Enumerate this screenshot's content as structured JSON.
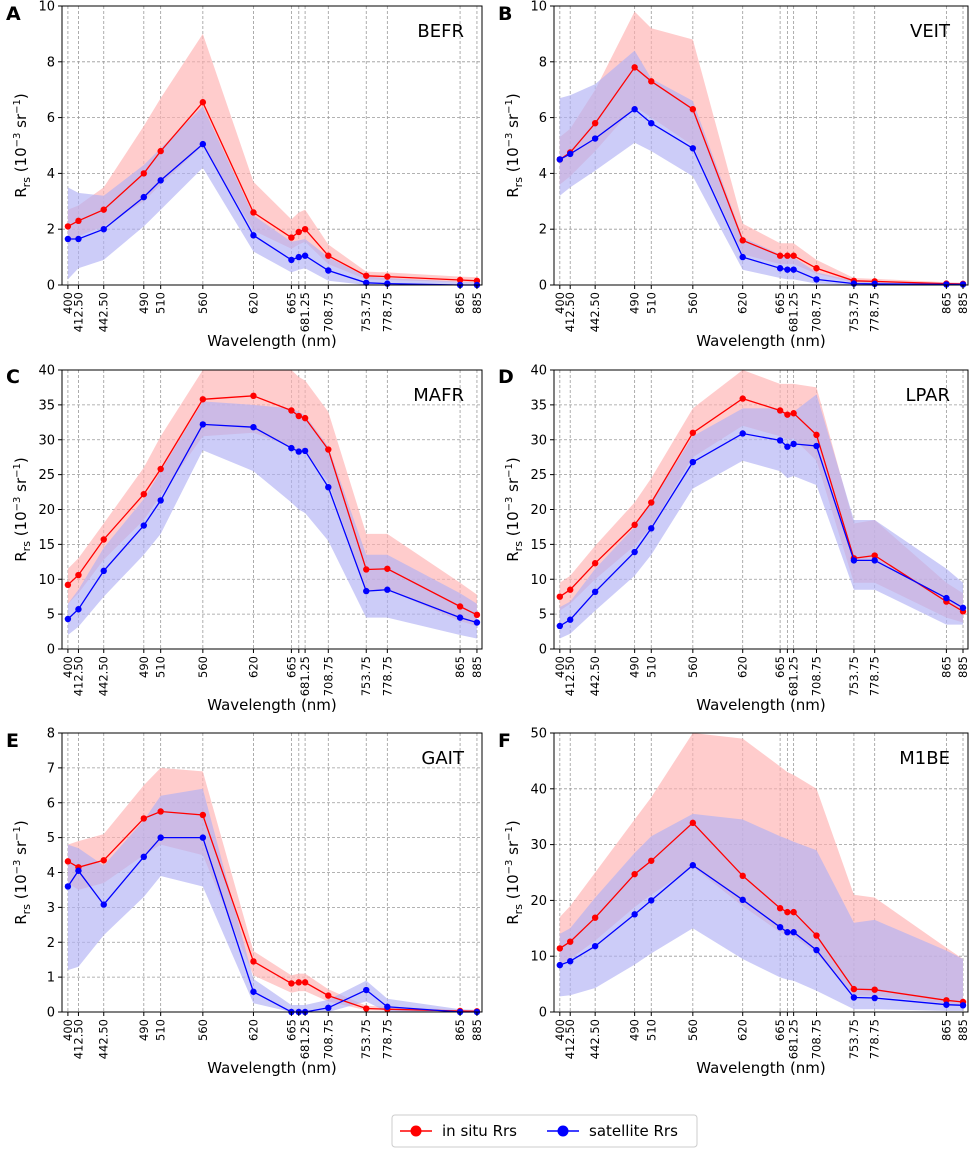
{
  "figure": {
    "xlabel": "Wavelength (nm)",
    "ylabel_main": "R",
    "ylabel_sub": "rs",
    "ylabel_unit": "(10",
    "ylabel_exp": "−3",
    "ylabel_sr": "sr",
    "ylabel_sr_exp": "−1",
    "ylabel_close": ")",
    "x_ticks": [
      400,
      412.5,
      442.5,
      490,
      510,
      560,
      620,
      665,
      673.75,
      681.25,
      708.75,
      753.75,
      778.75,
      865,
      885
    ],
    "x_tick_labels": [
      "400",
      "412.50",
      "442.50",
      "490",
      "510",
      "560",
      "620",
      "665",
      "",
      "681.25",
      "708.75",
      "753.75",
      "778.75",
      "865",
      "885"
    ],
    "xlim": [
      393,
      891
    ],
    "colors": {
      "in_situ": "#ff0000",
      "satellite": "#0000ff",
      "in_situ_band": "#ffb0b0",
      "satellite_band": "#b0b0f5",
      "grid": "#999999"
    }
  },
  "legend": {
    "in_situ_label": "in situ Rrs",
    "satellite_label": "satellite Rrs"
  },
  "chart_data": [
    {
      "type": "line",
      "panel": "A",
      "title": "BEFR",
      "ylim": [
        0,
        10
      ],
      "yticks": [
        0,
        2,
        4,
        6,
        8,
        10
      ],
      "ytick_labels": [
        "0",
        "2",
        "4",
        "6",
        "8",
        "10"
      ],
      "series": [
        {
          "name": "in situ Rrs",
          "values": [
            2.1,
            2.3,
            2.7,
            4.0,
            4.8,
            6.55,
            2.6,
            1.7,
            1.9,
            2.0,
            1.05,
            0.33,
            0.3,
            0.18,
            0.15
          ],
          "lower": [
            1.5,
            1.75,
            2.1,
            3.0,
            3.6,
            5.0,
            1.95,
            1.3,
            1.45,
            1.55,
            0.75,
            0.2,
            0.18,
            0.1,
            0.08
          ],
          "upper": [
            2.7,
            2.85,
            3.5,
            5.7,
            6.7,
            9.0,
            3.7,
            2.35,
            2.6,
            2.7,
            1.45,
            0.48,
            0.45,
            0.3,
            0.28
          ]
        },
        {
          "name": "satellite Rrs",
          "values": [
            1.65,
            1.65,
            2.0,
            3.15,
            3.75,
            5.05,
            1.78,
            0.9,
            1.0,
            1.05,
            0.52,
            0.08,
            0.05,
            0.0,
            0.0
          ],
          "lower": [
            0.2,
            0.6,
            0.9,
            2.1,
            2.7,
            4.2,
            1.2,
            0.45,
            0.55,
            0.6,
            0.15,
            0.0,
            0.0,
            0.0,
            0.0
          ],
          "upper": [
            3.5,
            3.3,
            3.2,
            4.3,
            4.9,
            6.4,
            2.5,
            1.55,
            1.6,
            1.65,
            1.0,
            0.3,
            0.25,
            0.12,
            0.1
          ]
        }
      ]
    },
    {
      "type": "line",
      "panel": "B",
      "title": "VEIT",
      "ylim": [
        0,
        10
      ],
      "yticks": [
        0,
        2,
        4,
        6,
        8,
        10
      ],
      "ytick_labels": [
        "0",
        "2",
        "4",
        "6",
        "8",
        "10"
      ],
      "series": [
        {
          "name": "in situ Rrs",
          "values": [
            4.5,
            4.75,
            5.8,
            7.8,
            7.3,
            6.3,
            1.6,
            1.05,
            1.05,
            1.05,
            0.6,
            0.15,
            0.13,
            0.05,
            0.04
          ],
          "lower": [
            3.6,
            3.9,
            4.8,
            6.4,
            6.0,
            5.0,
            1.1,
            0.75,
            0.75,
            0.75,
            0.4,
            0.08,
            0.07,
            0.02,
            0.02
          ],
          "upper": [
            5.3,
            5.6,
            7.0,
            9.8,
            9.2,
            8.8,
            2.2,
            1.5,
            1.5,
            1.5,
            0.9,
            0.25,
            0.22,
            0.1,
            0.08
          ]
        },
        {
          "name": "satellite Rrs",
          "values": [
            4.5,
            4.7,
            5.25,
            6.3,
            5.8,
            4.9,
            1.0,
            0.6,
            0.55,
            0.55,
            0.2,
            0.05,
            0.04,
            0.02,
            0.02
          ],
          "lower": [
            3.2,
            3.5,
            4.1,
            5.1,
            4.8,
            3.9,
            0.55,
            0.25,
            0.2,
            0.2,
            0.05,
            0.0,
            0.0,
            0.0,
            0.0
          ],
          "upper": [
            6.7,
            6.8,
            7.2,
            8.4,
            7.4,
            6.6,
            1.7,
            1.1,
            1.0,
            1.0,
            0.45,
            0.15,
            0.12,
            0.07,
            0.06
          ]
        }
      ]
    },
    {
      "type": "line",
      "panel": "C",
      "title": "MAFR",
      "ylim": [
        0,
        40
      ],
      "yticks": [
        0,
        5,
        10,
        15,
        20,
        25,
        30,
        35,
        40
      ],
      "ytick_labels": [
        "0",
        "5",
        "10",
        "15",
        "20",
        "25",
        "30",
        "35",
        "40"
      ],
      "series": [
        {
          "name": "in situ Rrs",
          "values": [
            9.2,
            10.6,
            15.7,
            22.2,
            25.8,
            35.8,
            36.3,
            34.2,
            33.4,
            33.1,
            28.6,
            11.4,
            11.5,
            6.1,
            4.9
          ],
          "lower": [
            6.5,
            8.0,
            12.8,
            18.5,
            22.0,
            30.5,
            31.0,
            29.0,
            28.5,
            28.3,
            24.0,
            8.3,
            8.5,
            4.0,
            3.3
          ],
          "upper": [
            11.5,
            13.0,
            18.0,
            26.0,
            30.5,
            40.0,
            40.0,
            40.0,
            39.0,
            38.5,
            34.0,
            16.5,
            16.5,
            9.5,
            7.8
          ]
        },
        {
          "name": "satellite Rrs",
          "values": [
            4.3,
            5.7,
            11.2,
            17.7,
            21.3,
            32.2,
            31.8,
            28.8,
            28.3,
            28.4,
            23.2,
            8.3,
            8.5,
            4.5,
            3.8
          ],
          "lower": [
            2.0,
            3.2,
            7.5,
            13.5,
            16.5,
            28.5,
            25.5,
            21.0,
            20.0,
            19.5,
            15.5,
            4.5,
            4.5,
            2.0,
            1.5
          ],
          "upper": [
            6.5,
            8.5,
            14.5,
            21.5,
            25.5,
            35.5,
            35.0,
            34.5,
            34.0,
            33.5,
            29.0,
            13.5,
            13.5,
            8.0,
            6.5
          ]
        }
      ]
    },
    {
      "type": "line",
      "panel": "D",
      "title": "LPAR",
      "ylim": [
        0,
        40
      ],
      "yticks": [
        0,
        5,
        10,
        15,
        20,
        25,
        30,
        35,
        40
      ],
      "ytick_labels": [
        "0",
        "5",
        "10",
        "15",
        "20",
        "25",
        "30",
        "35",
        "40"
      ],
      "series": [
        {
          "name": "in situ Rrs",
          "values": [
            7.5,
            8.5,
            12.3,
            17.8,
            21.0,
            31.0,
            35.9,
            34.2,
            33.6,
            33.8,
            30.7,
            13.0,
            13.4,
            6.8,
            5.4
          ],
          "lower": [
            5.5,
            6.5,
            10.0,
            14.8,
            17.5,
            27.5,
            32.0,
            30.5,
            30.0,
            30.2,
            27.0,
            9.5,
            9.5,
            4.5,
            3.8
          ],
          "upper": [
            9.5,
            10.5,
            14.8,
            21.0,
            24.5,
            34.5,
            40.0,
            38.0,
            38.0,
            38.0,
            37.5,
            18.0,
            18.5,
            9.5,
            8.0
          ]
        },
        {
          "name": "satellite Rrs",
          "values": [
            3.3,
            4.2,
            8.2,
            13.9,
            17.3,
            26.8,
            30.9,
            29.9,
            29.0,
            29.4,
            29.1,
            12.7,
            12.7,
            7.3,
            5.9
          ],
          "lower": [
            1.5,
            2.2,
            5.5,
            10.5,
            13.5,
            23.0,
            27.0,
            25.5,
            24.5,
            24.8,
            23.5,
            8.5,
            8.5,
            3.5,
            3.5
          ],
          "upper": [
            6.0,
            6.8,
            11.5,
            17.5,
            21.0,
            30.5,
            34.5,
            34.5,
            33.5,
            34.0,
            36.5,
            18.5,
            18.5,
            11.5,
            9.5
          ]
        }
      ]
    },
    {
      "type": "line",
      "panel": "E",
      "title": "GAIT",
      "ylim": [
        0,
        8
      ],
      "yticks": [
        0,
        1,
        2,
        3,
        4,
        5,
        6,
        7,
        8
      ],
      "ytick_labels": [
        "0",
        "1",
        "2",
        "3",
        "4",
        "5",
        "6",
        "7",
        "8"
      ],
      "series": [
        {
          "name": "in situ Rrs",
          "values": [
            4.32,
            4.15,
            4.35,
            5.55,
            5.75,
            5.65,
            1.45,
            0.82,
            0.85,
            0.85,
            0.47,
            0.1,
            0.08,
            0.03,
            0.02
          ],
          "lower": [
            3.7,
            3.5,
            3.7,
            4.5,
            4.8,
            4.5,
            1.05,
            0.55,
            0.6,
            0.6,
            0.3,
            0.05,
            0.04,
            0.01,
            0.01
          ],
          "upper": [
            4.8,
            4.9,
            5.1,
            6.5,
            7.0,
            6.9,
            1.75,
            1.05,
            1.1,
            1.1,
            0.65,
            0.18,
            0.15,
            0.06,
            0.05
          ]
        },
        {
          "name": "satellite Rrs",
          "values": [
            3.6,
            4.05,
            3.08,
            4.45,
            5.0,
            5.0,
            0.58,
            0.0,
            0.0,
            0.0,
            0.12,
            0.63,
            0.15,
            0.0,
            0.0
          ],
          "lower": [
            1.2,
            1.3,
            2.2,
            3.3,
            3.9,
            3.6,
            0.25,
            0.0,
            0.0,
            0.0,
            0.0,
            0.3,
            0.0,
            0.0,
            0.0
          ],
          "upper": [
            4.8,
            4.7,
            4.2,
            5.5,
            6.2,
            6.4,
            0.95,
            0.2,
            0.2,
            0.2,
            0.35,
            0.9,
            0.38,
            0.08,
            0.06
          ]
        }
      ]
    },
    {
      "type": "line",
      "panel": "F",
      "title": "M1BE",
      "ylim": [
        0,
        50
      ],
      "yticks": [
        0,
        10,
        20,
        30,
        40,
        50
      ],
      "ytick_labels": [
        "0",
        "10",
        "20",
        "30",
        "40",
        "50"
      ],
      "series": [
        {
          "name": "in situ Rrs",
          "values": [
            11.4,
            12.6,
            16.9,
            24.7,
            27.1,
            33.9,
            24.4,
            18.6,
            17.9,
            17.9,
            13.7,
            4.1,
            4.0,
            2.1,
            1.8
          ],
          "lower": [
            8.5,
            9.5,
            12.8,
            18.8,
            21.0,
            26.0,
            19.0,
            14.3,
            13.6,
            13.6,
            10.5,
            3.0,
            2.9,
            1.5,
            1.2
          ],
          "upper": [
            17.0,
            19.0,
            25.0,
            34.5,
            38.5,
            50.0,
            49.0,
            44.0,
            43.0,
            42.5,
            40.0,
            21.0,
            20.5,
            11.5,
            9.5
          ]
        },
        {
          "name": "satellite Rrs",
          "values": [
            8.4,
            9.1,
            11.8,
            17.5,
            20.0,
            26.3,
            20.1,
            15.2,
            14.3,
            14.3,
            11.1,
            2.6,
            2.5,
            1.3,
            1.2
          ],
          "lower": [
            2.8,
            3.0,
            4.3,
            8.5,
            10.5,
            15.0,
            9.5,
            6.2,
            5.8,
            5.6,
            3.8,
            0.5,
            0.5,
            0.2,
            0.2
          ],
          "upper": [
            14.0,
            15.0,
            20.5,
            28.5,
            31.5,
            35.5,
            34.5,
            31.5,
            31.0,
            30.5,
            29.0,
            16.0,
            16.5,
            11.0,
            9.5
          ]
        }
      ]
    }
  ]
}
